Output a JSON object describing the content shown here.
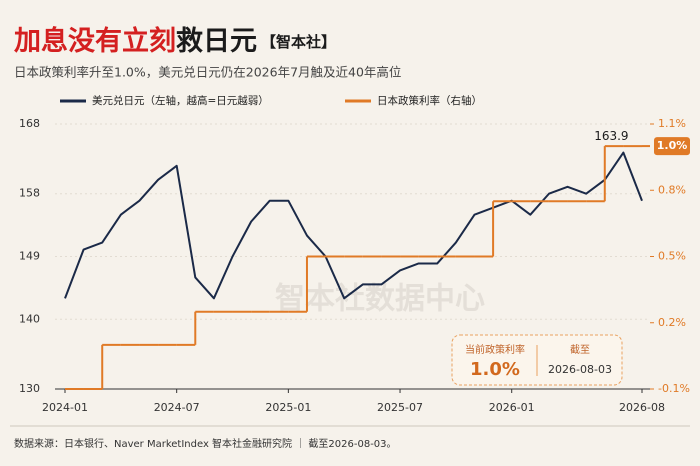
{
  "chart_data": {
    "type": "line",
    "title_red": "加息没有立刻",
    "title_dark": "救日元",
    "title_tag": "【智本社】",
    "subtitle": "日本政策利率升至1.0%，美元兑日元仍在2026年7月触及近40年高位",
    "x": [
      "2024-01",
      "2024-02",
      "2024-03",
      "2024-04",
      "2024-05",
      "2024-06",
      "2024-07",
      "2024-08",
      "2024-09",
      "2024-10",
      "2024-11",
      "2024-12",
      "2025-01",
      "2025-02",
      "2025-03",
      "2025-04",
      "2025-05",
      "2025-06",
      "2025-07",
      "2025-08",
      "2025-09",
      "2025-10",
      "2025-11",
      "2025-12",
      "2026-01",
      "2026-02",
      "2026-03",
      "2026-04",
      "2026-05",
      "2026-06",
      "2026-07",
      "2026-08"
    ],
    "xticks": [
      "2024-01",
      "2024-07",
      "2025-01",
      "2025-07",
      "2026-01",
      "2026-08"
    ],
    "series": [
      {
        "name": "美元兑日元（左轴，越高=日元越弱）",
        "color": "#1b2a48",
        "values": [
          143,
          150,
          151,
          155,
          157,
          160,
          162,
          146,
          143,
          149,
          154,
          157,
          157,
          152,
          149,
          143,
          145,
          145,
          147,
          148,
          148,
          151,
          155,
          156,
          157,
          155,
          158,
          159,
          158,
          160,
          163.9,
          157
        ]
      },
      {
        "name": "日本政策利率（右轴）",
        "color": "#e07a26",
        "axis": "y2",
        "step": true,
        "values": [
          -0.1,
          -0.1,
          0.1,
          0.1,
          0.1,
          0.1,
          0.1,
          0.25,
          0.25,
          0.25,
          0.25,
          0.25,
          0.25,
          0.5,
          0.5,
          0.5,
          0.5,
          0.5,
          0.5,
          0.5,
          0.5,
          0.5,
          0.5,
          0.75,
          0.75,
          0.75,
          0.75,
          0.75,
          0.75,
          1.0,
          1.0,
          1.0
        ],
        "value_labels": [
          null,
          null,
          null,
          null,
          null,
          null,
          null,
          null,
          null,
          null,
          null,
          null,
          null,
          null,
          null,
          null,
          null,
          null,
          null,
          null,
          null,
          null,
          null,
          null,
          null,
          null,
          null,
          null,
          null,
          null,
          null,
          "1.0%"
        ]
      }
    ],
    "ylim": [
      130,
      168
    ],
    "yticks": [
      130,
      140,
      149,
      158,
      168
    ],
    "y2lim": [
      -0.1,
      1.1
    ],
    "y2ticks": [
      {
        "value": -0.1,
        "label": "-0.1%"
      },
      {
        "value": 0.2,
        "label": "0.2%"
      },
      {
        "value": 0.5,
        "label": "0.5%"
      },
      {
        "value": 0.8,
        "label": "0.8%"
      },
      {
        "value": 1.1,
        "label": "1.1%"
      }
    ],
    "grid": true,
    "info_box": {
      "label": "当前政策利率",
      "value": "1.0%",
      "date_label": "截至",
      "date": "2026-08-03"
    },
    "watermark": "智本社数据中心",
    "source": "数据来源：日本银行、Naver MarketIndex  智本社金融研究院 ｜ 截至2026-08-03。"
  }
}
